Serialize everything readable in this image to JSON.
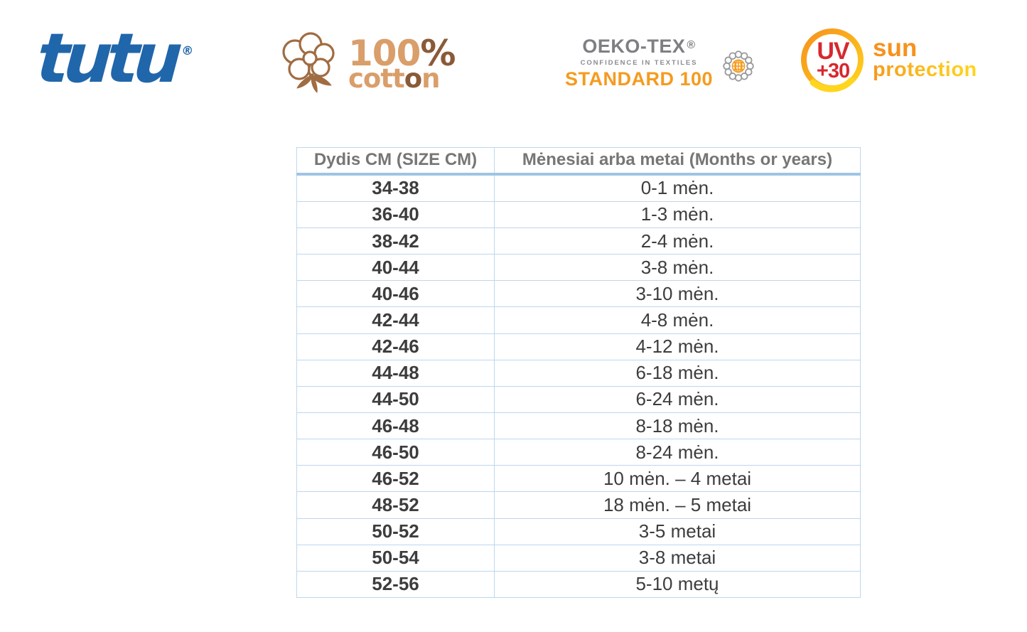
{
  "logos": {
    "tutu": {
      "text": "tutu",
      "registered": "®",
      "color": "#2066ab"
    },
    "cotton": {
      "pct_main": "100",
      "pct_sign": "%",
      "word_a": "cott",
      "word_b": "o",
      "word_c": "n",
      "tan_color": "#d99e6a",
      "brown_color": "#8a5a38",
      "outline_color": "#a06c42"
    },
    "oekotex": {
      "title": "OEKO-TEX",
      "registered": "®",
      "subtitle": "CONFIDENCE IN TEXTILES",
      "standard": "STANDARD 100",
      "gray_color": "#7d7f82",
      "orange_color": "#f59b1e"
    },
    "uv": {
      "line1": "UV",
      "line2": "+30",
      "sun": "sun",
      "protection": "protection",
      "red_color": "#d7282f",
      "orange_color": "#f6921e",
      "yellow_color": "#ffd51e"
    }
  },
  "table": {
    "headers": [
      "Dydis CM (SIZE CM)",
      "Mėnesiai arba metai (Months or years)"
    ],
    "border_color": "#bdd7ee",
    "header_underline_color": "#9fc4e4",
    "rows": [
      [
        "34-38",
        "0-1 mėn."
      ],
      [
        "36-40",
        "1-3 mėn."
      ],
      [
        "38-42",
        "2-4 mėn."
      ],
      [
        "40-44",
        "3-8 mėn."
      ],
      [
        "40-46",
        "3-10 mėn."
      ],
      [
        "42-44",
        "4-8 mėn."
      ],
      [
        "42-46",
        "4-12 mėn."
      ],
      [
        "44-48",
        "6-18 mėn."
      ],
      [
        "44-50",
        "6-24 mėn."
      ],
      [
        "46-48",
        "8-18 mėn."
      ],
      [
        "46-50",
        "8-24 mėn."
      ],
      [
        "46-52",
        "10 mėn. – 4 metai"
      ],
      [
        "48-52",
        "18 mėn. – 5 metai"
      ],
      [
        "50-52",
        "3-5 metai"
      ],
      [
        "50-54",
        "3-8 metai"
      ],
      [
        "52-56",
        "5-10 metų"
      ]
    ]
  }
}
